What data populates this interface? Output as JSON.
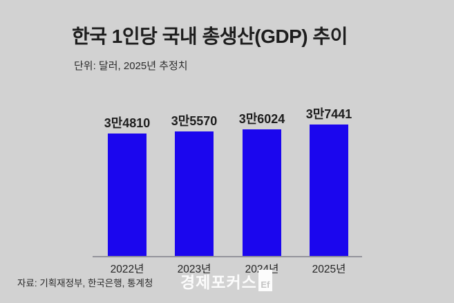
{
  "page": {
    "background_color": "#d2d2d2"
  },
  "header": {
    "title": "한국 1인당 국내 총생산(GDP) 추이",
    "subtitle": "단위: 달러, 2025년 추정치"
  },
  "chart_data": {
    "type": "bar",
    "title": "한국 1인당 국내 총생산(GDP) 추이",
    "subtitle": "단위: 달러, 2025년 추정치",
    "categories": [
      "2022년",
      "2023년",
      "2024년",
      "2025년"
    ],
    "values": [
      34810,
      35570,
      36024,
      37441
    ],
    "value_labels": [
      "3만4810",
      "3만5570",
      "3만6024",
      "3만7441"
    ],
    "unit": "달러",
    "ylim": [
      0,
      37441
    ],
    "bar_color": "#1b06ee",
    "axis_color": "#93939b",
    "grid": false,
    "legend": "none",
    "note": "2025년 추정치"
  },
  "footer": {
    "source": "자료: 기획재정부, 한국은행, 통계청",
    "logo_text": "경제포커스",
    "logo_badge": "Ef"
  }
}
